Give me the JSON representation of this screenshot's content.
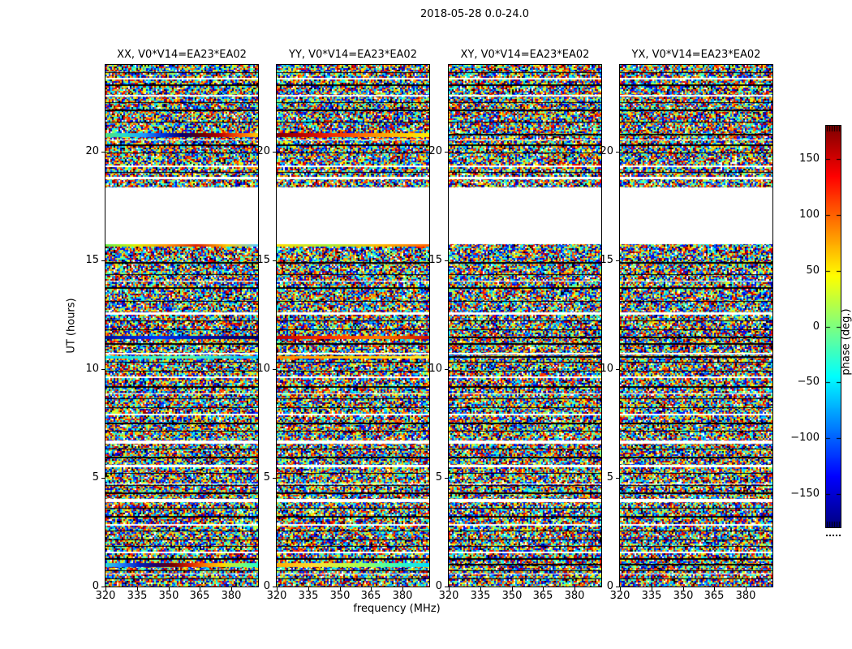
{
  "chart_data": {
    "type": "heatmap",
    "title": "2018-05-28 0.0-24.0",
    "panels": [
      {
        "title": "XX, V0*V14=EA23*EA02",
        "seed": 101
      },
      {
        "title": "YY, V0*V14=EA23*EA02",
        "seed": 202
      },
      {
        "title": "XY, V0*V14=EA23*EA02",
        "seed": 303
      },
      {
        "title": "YX, V0*V14=EA23*EA02",
        "seed": 404
      }
    ],
    "xlabel": "frequency (MHz)",
    "ylabel": "UT (hours)",
    "x_ticks": [
      320,
      335,
      350,
      365,
      380
    ],
    "x_range": [
      320,
      392.7
    ],
    "y_ticks": [
      0,
      5,
      10,
      15,
      20
    ],
    "y_range": [
      0,
      24
    ],
    "colorbar": {
      "label": "phase (deg.)",
      "colormap": "jet",
      "range": [
        -180,
        180
      ],
      "ticks": [
        {
          "label": "150",
          "value": 150
        },
        {
          "label": "100",
          "value": 100
        },
        {
          "label": "50",
          "value": 50
        },
        {
          "label": "0",
          "value": 0
        },
        {
          "label": "−50",
          "value": -50
        },
        {
          "label": "−100",
          "value": -100
        },
        {
          "label": "−150",
          "value": -150
        }
      ]
    },
    "content": "uniform random phase-noise speckle per frequency/time pixel with horizontal flagged bands",
    "data_gap": {
      "start_hour": 15.75,
      "end_hour": 18.35
    },
    "white_rows": [
      {
        "h": 23.35,
        "t": 2
      },
      {
        "h": 22.6,
        "t": 2
      },
      {
        "h": 20.52,
        "t": 1
      },
      {
        "h": 19.32,
        "t": 2
      },
      {
        "h": 18.78,
        "t": 3
      },
      {
        "h": 14.05,
        "t": 1
      },
      {
        "h": 12.55,
        "t": 3
      },
      {
        "h": 10.72,
        "t": 2
      },
      {
        "h": 9.62,
        "t": 2
      },
      {
        "h": 8.85,
        "t": 1
      },
      {
        "h": 7.92,
        "t": 2
      },
      {
        "h": 6.65,
        "t": 4
      },
      {
        "h": 5.52,
        "t": 3
      },
      {
        "h": 4.72,
        "t": 1
      },
      {
        "h": 3.95,
        "t": 4
      },
      {
        "h": 2.82,
        "t": 2
      },
      {
        "h": 1.55,
        "t": 2
      },
      {
        "h": 0.55,
        "t": 1
      }
    ],
    "black_rows": [
      {
        "h": 23.62,
        "t": 1
      },
      {
        "h": 23.05,
        "t": 2
      },
      {
        "h": 22.25,
        "t": 1
      },
      {
        "h": 21.9,
        "t": 2
      },
      {
        "h": 21.35,
        "t": 1
      },
      {
        "h": 20.78,
        "t": 2
      },
      {
        "h": 20.3,
        "t": 2
      },
      {
        "h": 19.95,
        "t": 1
      },
      {
        "h": 19.05,
        "t": 1
      },
      {
        "h": 14.9,
        "t": 2
      },
      {
        "h": 14.35,
        "t": 1
      },
      {
        "h": 13.72,
        "t": 2
      },
      {
        "h": 13.1,
        "t": 1
      },
      {
        "h": 12.2,
        "t": 1
      },
      {
        "h": 11.78,
        "t": 1
      },
      {
        "h": 11.45,
        "t": 2
      },
      {
        "h": 11.15,
        "t": 2
      },
      {
        "h": 10.55,
        "t": 2
      },
      {
        "h": 10.32,
        "t": 1
      },
      {
        "h": 9.9,
        "t": 1
      },
      {
        "h": 9.2,
        "t": 2
      },
      {
        "h": 8.62,
        "t": 1
      },
      {
        "h": 8.2,
        "t": 1
      },
      {
        "h": 7.52,
        "t": 2
      },
      {
        "h": 7.12,
        "t": 1
      },
      {
        "h": 6.32,
        "t": 1
      },
      {
        "h": 5.92,
        "t": 2
      },
      {
        "h": 5.18,
        "t": 1
      },
      {
        "h": 4.62,
        "t": 1
      },
      {
        "h": 4.28,
        "t": 2
      },
      {
        "h": 3.6,
        "t": 1
      },
      {
        "h": 3.22,
        "t": 2
      },
      {
        "h": 2.52,
        "t": 1
      },
      {
        "h": 2.12,
        "t": 1
      },
      {
        "h": 1.82,
        "t": 1
      },
      {
        "h": 1.28,
        "t": 2
      },
      {
        "h": 1.02,
        "t": 2
      },
      {
        "h": 0.72,
        "t": 1
      },
      {
        "h": 0.35,
        "t": 1
      }
    ],
    "gradient_rows": [
      {
        "panel": 0,
        "h": 20.78,
        "t": 5,
        "stops": [
          "#55dd77",
          "#22ddcc",
          "#2299ff",
          "#0033dd",
          "#000077",
          "#660000",
          "#bb0000",
          "#ff5500",
          "#ffcc00"
        ]
      },
      {
        "panel": 1,
        "h": 20.78,
        "t": 5,
        "stops": [
          "#880000",
          "#bb0000",
          "#ee2200",
          "#ff5500",
          "#ff9900",
          "#ffcc00",
          "#ffee00"
        ]
      },
      {
        "panel": 0,
        "h": 15.7,
        "t": 3,
        "stops": [
          "#66ee44",
          "#ddee00",
          "#ff9900",
          "#dd2200",
          "#ffcc00",
          "#55ccff"
        ]
      },
      {
        "panel": 1,
        "h": 15.7,
        "t": 3,
        "stops": [
          "#ffdd00",
          "#aaee33",
          "#ffbb00",
          "#ff6600"
        ]
      },
      {
        "panel": 0,
        "h": 11.45,
        "t": 4,
        "stops": [
          "#001199",
          "#0033ff",
          "#001199",
          "#000055"
        ]
      },
      {
        "panel": 1,
        "h": 11.45,
        "t": 4,
        "stops": [
          "#bb0000",
          "#ff3300",
          "#ff7700",
          "#cc1100"
        ]
      },
      {
        "panel": 0,
        "h": 10.55,
        "t": 3,
        "stops": [
          "#00ddff",
          "#55ffaa",
          "#00bbff"
        ]
      },
      {
        "panel": 1,
        "h": 10.55,
        "t": 3,
        "stops": [
          "#ff8800",
          "#ffcc00",
          "#ffee33"
        ]
      },
      {
        "panel": 0,
        "h": 1.02,
        "t": 5,
        "stops": [
          "#22dddd",
          "#2277ff",
          "#0022bb",
          "#220066",
          "#770000",
          "#dd2200",
          "#ff8800",
          "#ffdd00",
          "#77ff77",
          "#22ffcc"
        ]
      },
      {
        "panel": 1,
        "h": 1.02,
        "t": 5,
        "stops": [
          "#ffaa00",
          "#ffdd33",
          "#bbff44",
          "#44ffaa",
          "#00ddff"
        ]
      }
    ]
  }
}
